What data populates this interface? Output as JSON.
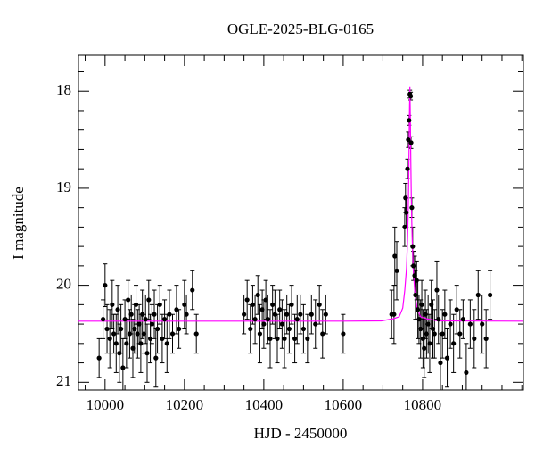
{
  "chart_data": {
    "type": "scatter",
    "title": "OGLE-2025-BLG-0165",
    "x_label": "HJD - 2450000",
    "y_label": "I magnitude",
    "xlim": [
      9933,
      11054
    ],
    "ylim": [
      21.08,
      17.63
    ],
    "xticks": [
      10000,
      10200,
      10400,
      10600,
      10800
    ],
    "yticks": [
      18,
      19,
      20,
      21
    ],
    "xminorticks": [
      9950,
      10050,
      10100,
      10150,
      10250,
      10300,
      10350,
      10450,
      10500,
      10550,
      10650,
      10700,
      10750,
      10850,
      10900,
      10950,
      11000,
      11050
    ],
    "yminorticks": [
      17.8,
      18.2,
      18.4,
      18.6,
      18.8,
      19.2,
      19.4,
      19.6,
      19.8,
      20.2,
      20.4,
      20.6,
      20.8
    ],
    "color": "#000000",
    "x": [
      9985,
      9995,
      10000,
      10005,
      10012,
      10018,
      10022,
      10028,
      10032,
      10036,
      10040,
      10045,
      10050,
      10054,
      10058,
      10062,
      10066,
      10070,
      10074,
      10078,
      10082,
      10086,
      10090,
      10094,
      10098,
      10102,
      10106,
      10110,
      10114,
      10118,
      10124,
      10128,
      10132,
      10138,
      10144,
      10150,
      10156,
      10162,
      10170,
      10180,
      10186,
      10200,
      10205,
      10220,
      10230,
      10350,
      10358,
      10366,
      10372,
      10378,
      10385,
      10390,
      10396,
      10400,
      10405,
      10410,
      10416,
      10422,
      10428,
      10434,
      10440,
      10446,
      10452,
      10458,
      10464,
      10470,
      10478,
      10484,
      10492,
      10500,
      10510,
      10520,
      10530,
      10540,
      10548,
      10556,
      10600,
      10722,
      10728,
      10730,
      10735,
      10755,
      10757,
      10759,
      10762,
      10764,
      10766,
      10768,
      10770,
      10771,
      10773,
      10775,
      10777,
      10780,
      10782,
      10785,
      10788,
      10791,
      10795,
      10798,
      10801,
      10804,
      10807,
      10810,
      10814,
      10818,
      10822,
      10826,
      10830,
      10836,
      10840,
      10845,
      10850,
      10856,
      10862,
      10870,
      10878,
      10886,
      10894,
      10902,
      10910,
      10920,
      10930,
      10940,
      10950,
      10960,
      10970
    ],
    "values": [
      20.75,
      20.35,
      20.0,
      20.45,
      20.55,
      20.2,
      20.5,
      20.6,
      20.25,
      20.7,
      20.45,
      20.85,
      20.35,
      20.6,
      20.15,
      20.5,
      20.3,
      20.65,
      20.45,
      20.2,
      20.5,
      20.4,
      20.6,
      20.3,
      20.5,
      20.35,
      20.7,
      20.15,
      20.55,
      20.4,
      20.3,
      20.75,
      20.45,
      20.2,
      20.55,
      20.35,
      20.6,
      20.3,
      20.5,
      20.25,
      20.45,
      20.2,
      20.3,
      20.05,
      20.5,
      20.3,
      20.15,
      20.45,
      20.2,
      20.35,
      20.1,
      20.5,
      20.25,
      20.4,
      20.15,
      20.35,
      20.55,
      20.2,
      20.3,
      20.55,
      20.25,
      20.4,
      20.55,
      20.3,
      20.45,
      20.2,
      20.55,
      20.35,
      20.3,
      20.45,
      20.55,
      20.3,
      20.4,
      20.2,
      20.5,
      20.3,
      20.5,
      20.3,
      20.3,
      19.7,
      19.85,
      19.4,
      19.1,
      19.25,
      18.8,
      18.5,
      18.3,
      18.03,
      18.05,
      18.53,
      19.2,
      19.6,
      19.8,
      19.9,
      20.1,
      19.95,
      20.25,
      20.35,
      20.45,
      20.2,
      20.55,
      20.65,
      20.3,
      20.5,
      20.4,
      20.6,
      20.2,
      20.45,
      20.5,
      20.05,
      20.35,
      20.8,
      20.5,
      20.3,
      20.75,
      20.4,
      20.6,
      20.25,
      20.5,
      20.35,
      20.9,
      20.4,
      20.55,
      20.1,
      20.4,
      20.55,
      20.1
    ],
    "errors": [
      0.2,
      0.2,
      0.22,
      0.25,
      0.3,
      0.25,
      0.2,
      0.3,
      0.25,
      0.3,
      0.25,
      0.3,
      0.2,
      0.25,
      0.2,
      0.25,
      0.2,
      0.3,
      0.25,
      0.2,
      0.25,
      0.2,
      0.3,
      0.25,
      0.2,
      0.25,
      0.3,
      0.2,
      0.25,
      0.2,
      0.25,
      0.3,
      0.25,
      0.2,
      0.25,
      0.2,
      0.3,
      0.25,
      0.2,
      0.25,
      0.2,
      0.25,
      0.2,
      0.2,
      0.2,
      0.2,
      0.2,
      0.25,
      0.2,
      0.25,
      0.2,
      0.3,
      0.2,
      0.25,
      0.2,
      0.25,
      0.3,
      0.2,
      0.25,
      0.25,
      0.2,
      0.25,
      0.3,
      0.2,
      0.25,
      0.2,
      0.25,
      0.25,
      0.2,
      0.25,
      0.25,
      0.2,
      0.25,
      0.2,
      0.25,
      0.2,
      0.2,
      0.25,
      0.3,
      0.3,
      0.3,
      0.2,
      0.15,
      0.15,
      0.1,
      0.08,
      0.05,
      0.04,
      0.04,
      0.06,
      0.1,
      0.2,
      0.15,
      0.2,
      0.25,
      0.2,
      0.3,
      0.25,
      0.3,
      0.25,
      0.3,
      0.3,
      0.25,
      0.25,
      0.3,
      0.3,
      0.25,
      0.3,
      0.25,
      0.3,
      0.25,
      0.3,
      0.25,
      0.25,
      0.3,
      0.25,
      0.3,
      0.25,
      0.25,
      0.2,
      0.3,
      0.25,
      0.3,
      0.25,
      0.3,
      0.3,
      0.25
    ],
    "model": {
      "color": "#ff00ff",
      "x": [
        9933,
        10600,
        10696,
        10726,
        10741,
        10750,
        10755.2,
        10759.6,
        10762,
        10763.2,
        10764.4,
        10765.6,
        10766.8,
        10768,
        10769.2,
        10770.4,
        10771.6,
        10772.8,
        10774,
        10776.4,
        10780,
        10786,
        10795,
        10810,
        10840,
        11054
      ],
      "values": [
        20.37,
        20.37,
        20.367,
        20.345,
        20.325,
        20.235,
        20.05,
        19.82,
        19.54,
        19.35,
        19.09,
        18.74,
        18.28,
        17.95,
        18.28,
        18.74,
        19.09,
        19.35,
        19.54,
        19.82,
        20.05,
        20.235,
        20.325,
        20.345,
        20.367,
        20.37
      ]
    }
  }
}
